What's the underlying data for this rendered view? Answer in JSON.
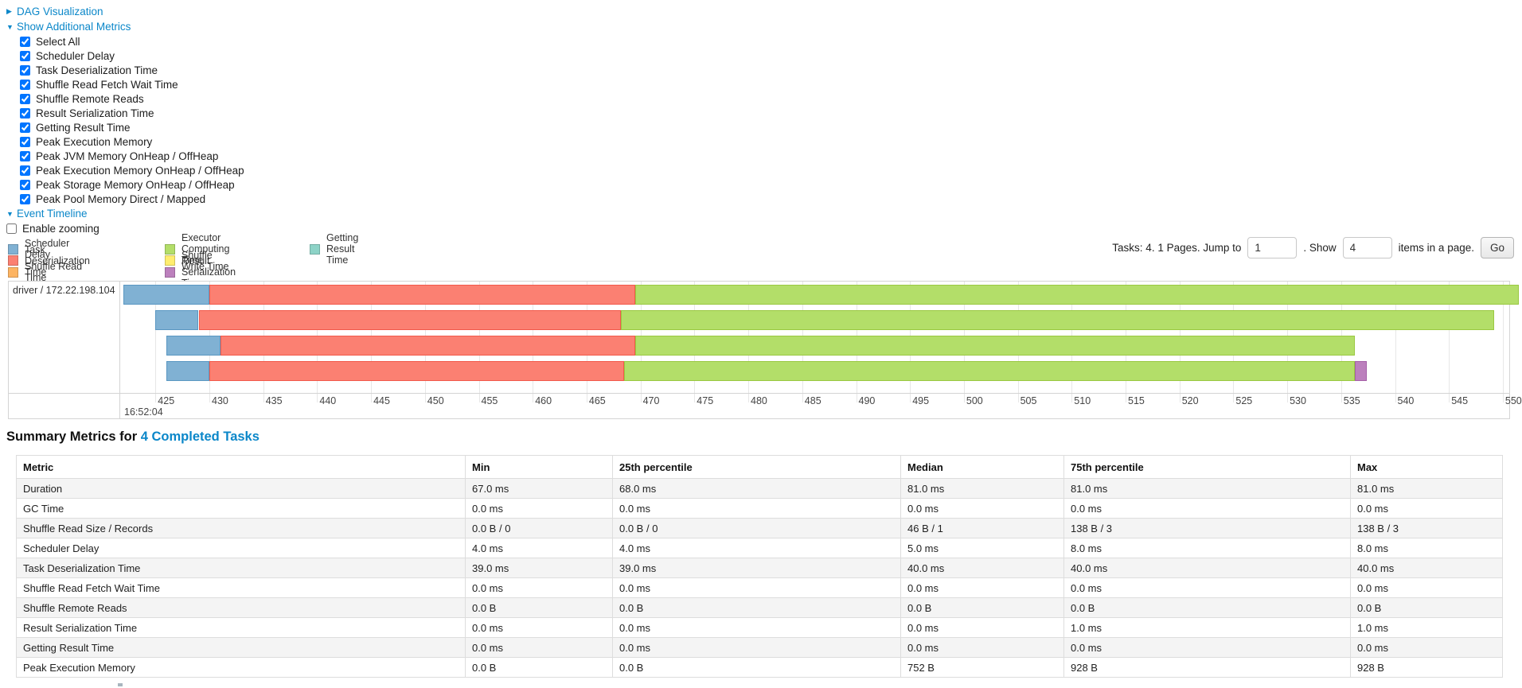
{
  "controls": {
    "dag": {
      "arrow": "▶",
      "label": "DAG Visualization"
    },
    "additional_metrics": {
      "arrow": "▼",
      "label": "Show Additional Metrics",
      "checkboxes": [
        "Select All",
        "Scheduler Delay",
        "Task Deserialization Time",
        "Shuffle Read Fetch Wait Time",
        "Shuffle Remote Reads",
        "Result Serialization Time",
        "Getting Result Time",
        "Peak Execution Memory",
        "Peak JVM Memory OnHeap / OffHeap",
        "Peak Execution Memory OnHeap / OffHeap",
        "Peak Storage Memory OnHeap / OffHeap",
        "Peak Pool Memory Direct / Mapped"
      ]
    },
    "event_timeline": {
      "arrow": "▼",
      "label": "Event Timeline"
    },
    "enable_zooming_label": "Enable zooming"
  },
  "legend": {
    "columns": [
      [
        {
          "key": "scheduler_delay",
          "label": "Scheduler Delay"
        },
        {
          "key": "task_deserialization",
          "label": "Task Deserialization Time"
        },
        {
          "key": "shuffle_read",
          "label": "Shuffle Read Time"
        }
      ],
      [
        {
          "key": "executor_computing",
          "label": "Executor Computing Time"
        },
        {
          "key": "shuffle_write",
          "label": "Shuffle Write Time"
        },
        {
          "key": "result_serialization",
          "label": "Result Serialization Time"
        }
      ],
      [
        {
          "key": "getting_result",
          "label": "Getting Result Time"
        }
      ]
    ]
  },
  "pagination": {
    "tasks_text": "Tasks: 4. 1 Pages. Jump to",
    "jump_value": "1",
    "show_text": ". Show",
    "show_value": "4",
    "items_text": "items in a page.",
    "go_label": "Go"
  },
  "chart_data": {
    "type": "timeline",
    "group_label": "driver / 172.22.198.104",
    "axis_sub_label": "16:52:04",
    "axis_min": 421.8,
    "axis_max": 550.6,
    "ticks": [
      425,
      430,
      435,
      440,
      445,
      450,
      455,
      460,
      465,
      470,
      475,
      480,
      485,
      490,
      495,
      500,
      505,
      510,
      515,
      520,
      525,
      530,
      535,
      540,
      545,
      550
    ],
    "colors": {
      "scheduler_delay": "#80B1D3",
      "task_deserialization": "#FB8072",
      "shuffle_read": "#FDB462",
      "executor_computing": "#B3DE69",
      "shuffle_write": "#FFED6F",
      "result_serialization": "#BC80BD",
      "getting_result": "#8DD3C7"
    },
    "tasks": [
      {
        "segments": [
          {
            "key": "scheduler_delay",
            "from": 422.0,
            "to": 430.0
          },
          {
            "key": "task_deserialization",
            "from": 430.0,
            "to": 469.5
          },
          {
            "key": "executor_computing",
            "from": 469.5,
            "to": 551.5
          }
        ]
      },
      {
        "segments": [
          {
            "key": "scheduler_delay",
            "from": 425.0,
            "to": 429.0
          },
          {
            "key": "task_deserialization",
            "from": 429.0,
            "to": 468.2
          },
          {
            "key": "executor_computing",
            "from": 468.2,
            "to": 549.2
          }
        ]
      },
      {
        "segments": [
          {
            "key": "scheduler_delay",
            "from": 426.0,
            "to": 431.0
          },
          {
            "key": "task_deserialization",
            "from": 431.0,
            "to": 469.5
          },
          {
            "key": "executor_computing",
            "from": 469.5,
            "to": 536.3
          }
        ]
      },
      {
        "segments": [
          {
            "key": "scheduler_delay",
            "from": 426.0,
            "to": 430.0
          },
          {
            "key": "task_deserialization",
            "from": 430.0,
            "to": 468.5
          },
          {
            "key": "executor_computing",
            "from": 468.5,
            "to": 536.3
          },
          {
            "key": "result_serialization",
            "from": 536.3,
            "to": 537.4
          }
        ]
      }
    ]
  },
  "summary": {
    "title_prefix": "Summary Metrics for ",
    "title_link": "4 Completed Tasks",
    "headers": [
      "Metric",
      "Min",
      "25th percentile",
      "Median",
      "75th percentile",
      "Max"
    ],
    "rows": [
      {
        "metric": "Duration",
        "values": [
          "67.0 ms",
          "68.0 ms",
          "81.0 ms",
          "81.0 ms",
          "81.0 ms"
        ]
      },
      {
        "metric": "GC Time",
        "values": [
          "0.0 ms",
          "0.0 ms",
          "0.0 ms",
          "0.0 ms",
          "0.0 ms"
        ]
      },
      {
        "metric": "Shuffle Read Size / Records",
        "values": [
          "0.0 B / 0",
          "0.0 B / 0",
          "46 B / 1",
          "138 B / 3",
          "138 B / 3"
        ]
      },
      {
        "metric": "Scheduler Delay",
        "values": [
          "4.0 ms",
          "4.0 ms",
          "5.0 ms",
          "8.0 ms",
          "8.0 ms"
        ]
      },
      {
        "metric": "Task Deserialization Time",
        "values": [
          "39.0 ms",
          "39.0 ms",
          "40.0 ms",
          "40.0 ms",
          "40.0 ms"
        ]
      },
      {
        "metric": "Shuffle Read Fetch Wait Time",
        "values": [
          "0.0 ms",
          "0.0 ms",
          "0.0 ms",
          "0.0 ms",
          "0.0 ms"
        ]
      },
      {
        "metric": "Shuffle Remote Reads",
        "values": [
          "0.0 B",
          "0.0 B",
          "0.0 B",
          "0.0 B",
          "0.0 B"
        ]
      },
      {
        "metric": "Result Serialization Time",
        "values": [
          "0.0 ms",
          "0.0 ms",
          "0.0 ms",
          "1.0 ms",
          "1.0 ms"
        ]
      },
      {
        "metric": "Getting Result Time",
        "values": [
          "0.0 ms",
          "0.0 ms",
          "0.0 ms",
          "0.0 ms",
          "0.0 ms"
        ]
      },
      {
        "metric": "Peak Execution Memory",
        "values": [
          "0.0 B",
          "0.0 B",
          "752 B",
          "928 B",
          "928 B"
        ]
      }
    ]
  }
}
